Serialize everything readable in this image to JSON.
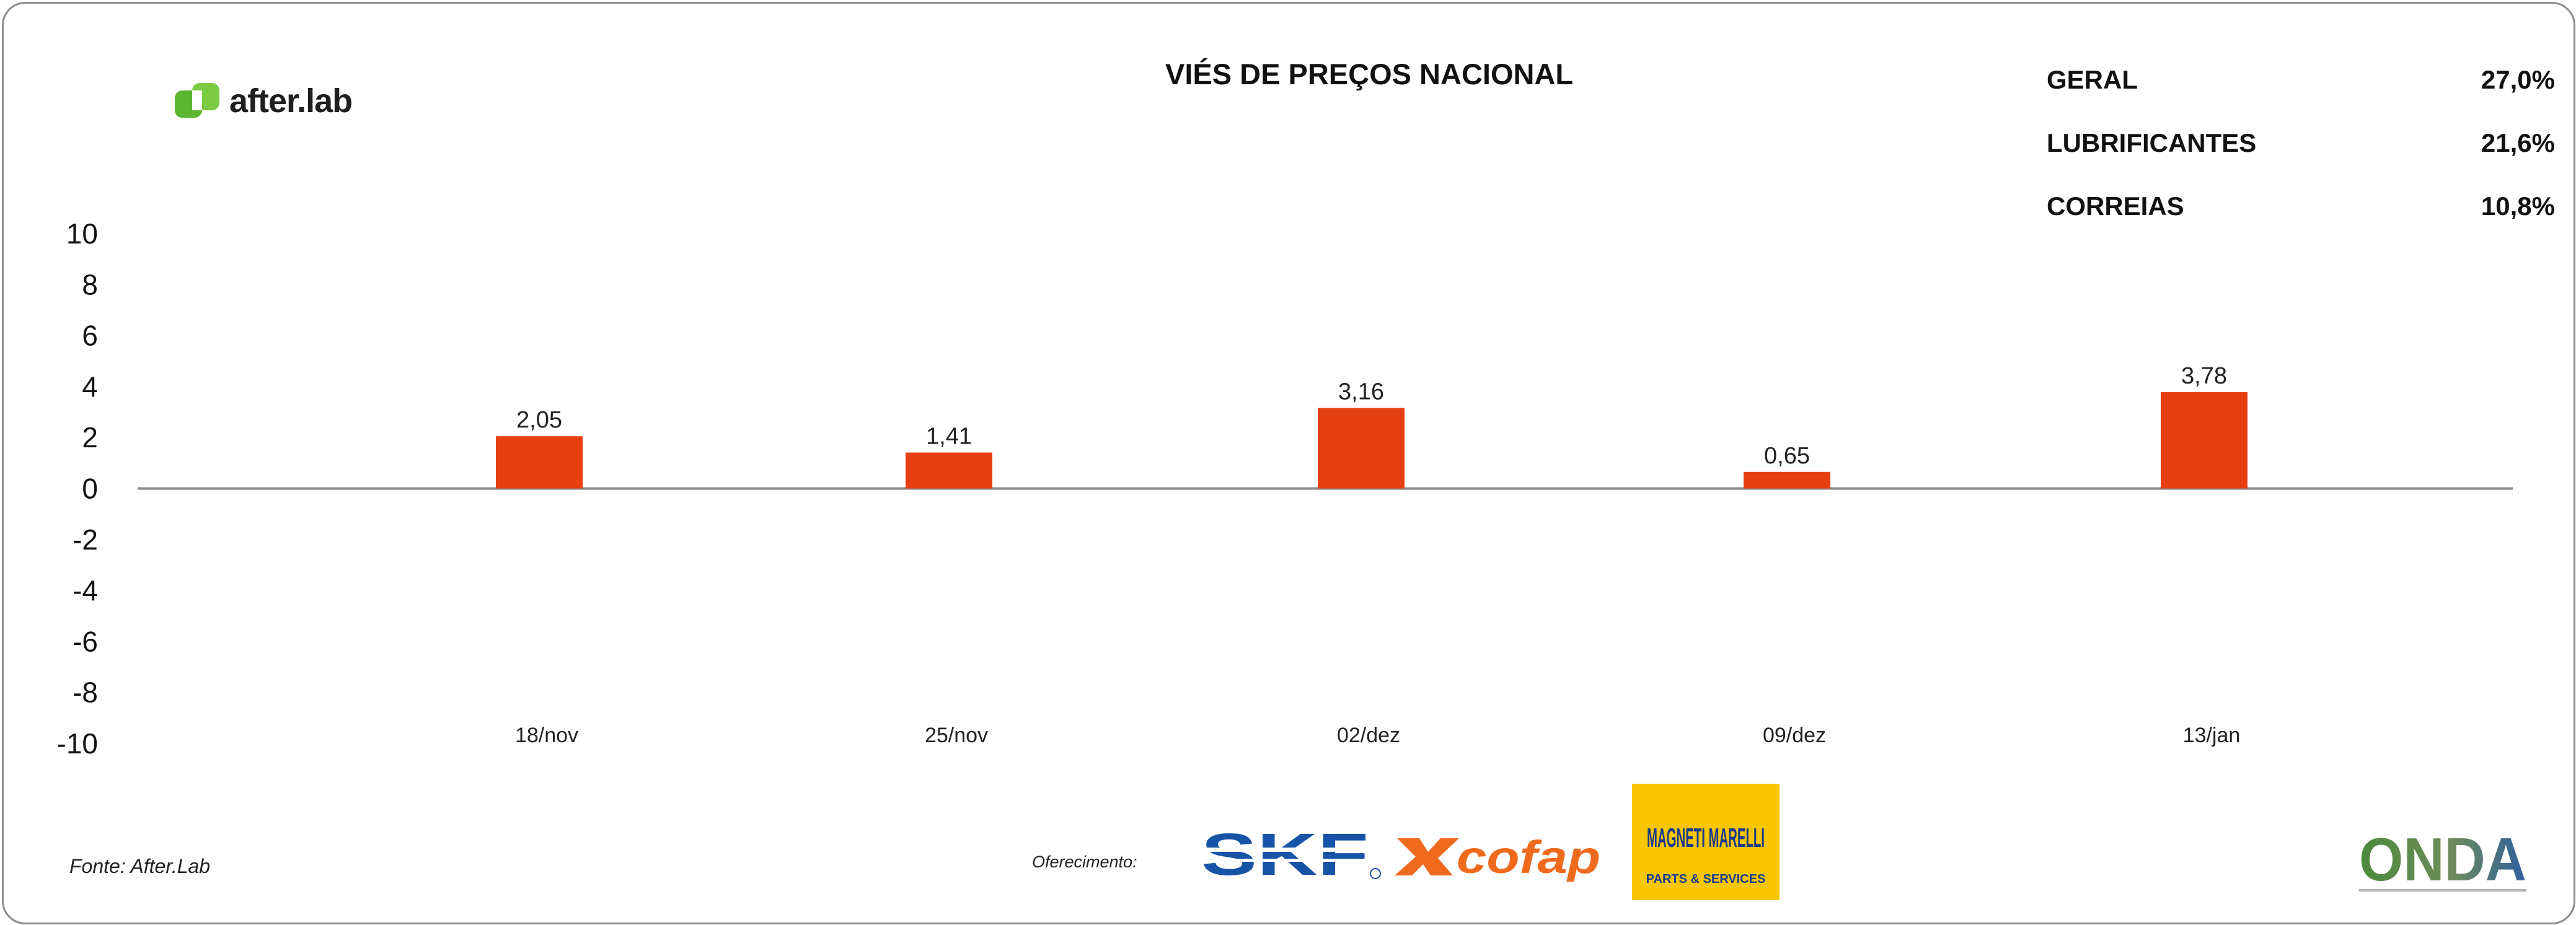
{
  "header": {
    "logo_text": "after.lab",
    "title": "VIÉS DE PREÇOS NACIONAL"
  },
  "stats": [
    {
      "label": "GERAL",
      "value": "27,0%"
    },
    {
      "label": "LUBRIFICANTES",
      "value": "21,6%"
    },
    {
      "label": "CORREIAS",
      "value": "10,8%"
    }
  ],
  "chart_data": {
    "type": "bar",
    "title": "VIÉS DE PREÇOS NACIONAL",
    "categories": [
      "18/nov",
      "25/nov",
      "02/dez",
      "09/dez",
      "13/jan"
    ],
    "values": [
      2.05,
      1.41,
      3.16,
      0.65,
      3.78
    ],
    "value_labels": [
      "2,05",
      "1,41",
      "3,16",
      "0,65",
      "3,78"
    ],
    "ylim": [
      -10,
      10
    ],
    "yticks": [
      "10",
      "8",
      "6",
      "4",
      "2",
      "0",
      "-2",
      "-4",
      "-6",
      "-8",
      "-10"
    ],
    "bar_color": "#e64012",
    "grid": false,
    "legend": "none"
  },
  "footer": {
    "source": "Fonte: After.Lab",
    "sponsor_label": "Oferecimento:",
    "sponsors": [
      "SKF",
      "cofap",
      "MAGNETI MARELLI",
      "PARTS & SERVICES"
    ],
    "onda_logo_text": "ONDA"
  },
  "colors": {
    "accent_green": "#5cb531",
    "bar": "#e64012",
    "skf_blue": "#1753a6",
    "cofap_orange": "#ef6a1c",
    "magneti_yellow": "#f7c600",
    "magneti_blue": "#1a3a8c"
  }
}
